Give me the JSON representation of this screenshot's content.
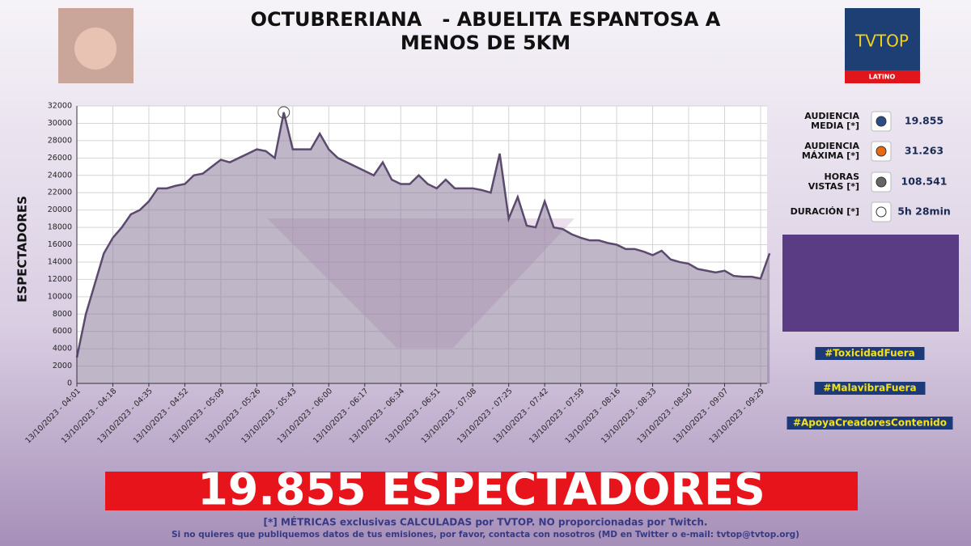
{
  "header": {
    "title": [
      "OCTUBRERIANA   - ABUELITA ESPANTOSA A",
      "MENOS DE 5KM"
    ],
    "logo": "TVTOP",
    "logo_sub": "LATINO"
  },
  "chart_data": {
    "type": "area",
    "y_label": "ESPECTADORES",
    "categories": [
      "13/10/2023 - 04:01",
      null,
      null,
      null,
      "13/10/2023 - 04:18",
      null,
      null,
      null,
      "13/10/2023 - 04:35",
      null,
      null,
      null,
      "13/10/2023 - 04:52",
      null,
      null,
      null,
      "13/10/2023 - 05:09",
      null,
      null,
      null,
      "13/10/2023 - 05:26",
      null,
      null,
      null,
      "13/10/2023 - 05:43",
      null,
      null,
      null,
      "13/10/2023 - 06:00",
      null,
      null,
      null,
      "13/10/2023 - 06:17",
      null,
      null,
      null,
      "13/10/2023 - 06:34",
      null,
      null,
      null,
      "13/10/2023 - 06:51",
      null,
      null,
      null,
      "13/10/2023 - 07:08",
      null,
      null,
      null,
      "13/10/2023 - 07:25",
      null,
      null,
      null,
      "13/10/2023 - 07:42",
      null,
      null,
      null,
      "13/10/2023 - 07:59",
      null,
      null,
      null,
      "13/10/2023 - 08:16",
      null,
      null,
      null,
      "13/10/2023 - 08:33",
      null,
      null,
      null,
      "13/10/2023 - 08:50",
      null,
      null,
      null,
      "13/10/2023 - 09:07",
      null,
      null,
      null,
      "13/10/2023 - 09:29",
      null
    ],
    "series": [
      {
        "name": "Espectadores",
        "color": "#5b4a6e",
        "values": [
          3000,
          8000,
          11500,
          15000,
          16800,
          18000,
          19500,
          20000,
          21000,
          22500,
          22500,
          22800,
          23000,
          24000,
          24200,
          25000,
          25800,
          25500,
          26000,
          26500,
          27000,
          26800,
          26000,
          31263,
          27000,
          27000,
          27000,
          28800,
          27000,
          26000,
          25500,
          25000,
          24500,
          24000,
          25500,
          23500,
          23000,
          23000,
          24000,
          23000,
          22500,
          23500,
          22500,
          22500,
          22500,
          22300,
          22000,
          26500,
          19000,
          21500,
          18200,
          18000,
          21000,
          18000,
          17800,
          17200,
          16800,
          16500,
          16500,
          16200,
          16000,
          15500,
          15500,
          15200,
          14800,
          15300,
          14300,
          14000,
          13800,
          13200,
          13000,
          12800,
          13000,
          12400,
          12300,
          12300,
          12100,
          15000
        ]
      }
    ],
    "ylim": [
      0,
      32000
    ],
    "yticks": [
      0,
      2000,
      4000,
      6000,
      8000,
      10000,
      12000,
      14000,
      16000,
      18000,
      20000,
      22000,
      24000,
      26000,
      28000,
      30000,
      32000
    ],
    "grid": true
  },
  "stats": [
    {
      "label": [
        "AUDIENCIA",
        "MEDIA [*]"
      ],
      "value": "19.855"
    },
    {
      "label": [
        "AUDIENCIA",
        "MÁXIMA [*]"
      ],
      "value": "31.263"
    },
    {
      "label": [
        "HORAS",
        "VISTAS [*]"
      ],
      "value": "108.541"
    },
    {
      "label": [
        "DURACIÓN [*]"
      ],
      "value": "5h 28min"
    }
  ],
  "hashtags": [
    "#ToxicidadFuera",
    "#MalavibraFuera",
    "#ApoyaCreadoresContenido"
  ],
  "banner": "19.855 ESPECTADORES",
  "footer": [
    "[*] MÉTRICAS exclusivas CALCULADAS por TVTOP. NO proporcionadas por Twitch.",
    "Si no quieres que publiquemos datos de tus emisiones, por favor, contacta con nosotros (MD en Twitter o e-mail: tvtop@tvtop.org)"
  ]
}
